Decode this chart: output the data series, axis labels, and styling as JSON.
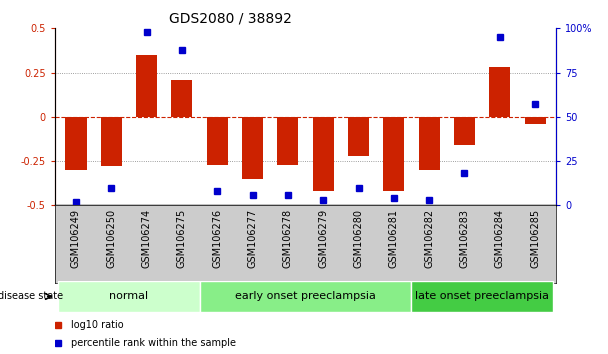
{
  "title": "GDS2080 / 38892",
  "samples": [
    "GSM106249",
    "GSM106250",
    "GSM106274",
    "GSM106275",
    "GSM106276",
    "GSM106277",
    "GSM106278",
    "GSM106279",
    "GSM106280",
    "GSM106281",
    "GSM106282",
    "GSM106283",
    "GSM106284",
    "GSM106285"
  ],
  "log10_ratio": [
    -0.3,
    -0.28,
    0.35,
    0.21,
    -0.27,
    -0.35,
    -0.27,
    -0.42,
    -0.22,
    -0.42,
    -0.3,
    -0.16,
    0.28,
    -0.04
  ],
  "percentile_rank": [
    2,
    10,
    98,
    88,
    8,
    6,
    6,
    3,
    10,
    4,
    3,
    18,
    95,
    57
  ],
  "groups": [
    {
      "label": "normal",
      "indices": [
        0,
        3
      ],
      "color": "#ccffcc"
    },
    {
      "label": "early onset preeclampsia",
      "indices": [
        4,
        9
      ],
      "color": "#88ee88"
    },
    {
      "label": "late onset preeclampsia",
      "indices": [
        10,
        13
      ],
      "color": "#44cc44"
    }
  ],
  "bar_color": "#cc2200",
  "dot_color": "#0000cc",
  "ylim_left": [
    -0.5,
    0.5
  ],
  "ylim_right": [
    0,
    100
  ],
  "yticks_left": [
    -0.5,
    -0.25,
    0,
    0.25,
    0.5
  ],
  "yticks_right": [
    0,
    25,
    50,
    75,
    100
  ],
  "legend_items": [
    "log10 ratio",
    "percentile rank within the sample"
  ],
  "bar_width": 0.6,
  "disease_state_label": "disease state",
  "title_fontsize": 10,
  "tick_fontsize": 7,
  "group_label_fontsize": 8,
  "legend_fontsize": 7,
  "label_color_left": "#cc2200",
  "label_color_right": "#0000cc"
}
